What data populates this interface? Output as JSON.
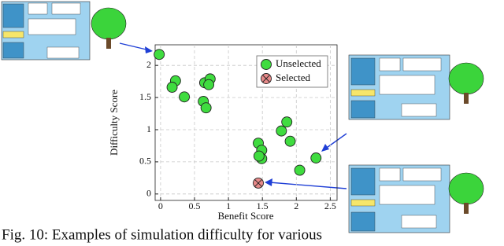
{
  "chart_data": {
    "type": "scatter",
    "x_label": "Benefit Score",
    "y_label": "Difficulty Score",
    "caption": "Fig. 10: Examples of simulation difficulty for various",
    "xlim": [
      -0.08,
      2.6
    ],
    "ylim": [
      -0.1,
      2.32
    ],
    "xticks": [
      0,
      0.5,
      1,
      1.5,
      2,
      2.5
    ],
    "yticks": [
      0,
      0.5,
      1,
      1.5,
      2
    ],
    "grid": true,
    "legend": "upper right",
    "series": [
      {
        "name": "Unselected",
        "color": "#3fdc3f",
        "marker": "circle",
        "x": [
          -0.02,
          0.22,
          0.17,
          0.35,
          0.65,
          0.73,
          0.71,
          0.63,
          0.67,
          1.86,
          1.78,
          1.91,
          1.44,
          1.49,
          1.49,
          1.45,
          2.05,
          2.29
        ],
        "values": [
          2.17,
          1.76,
          1.66,
          1.51,
          1.73,
          1.79,
          1.7,
          1.44,
          1.34,
          1.12,
          0.98,
          0.82,
          0.79,
          0.68,
          0.55,
          0.59,
          0.37,
          0.56
        ]
      },
      {
        "name": "Selected",
        "color": "#e88a8a",
        "marker": "x-circle",
        "x": [
          1.44
        ],
        "values": [
          0.17
        ]
      }
    ]
  }
}
